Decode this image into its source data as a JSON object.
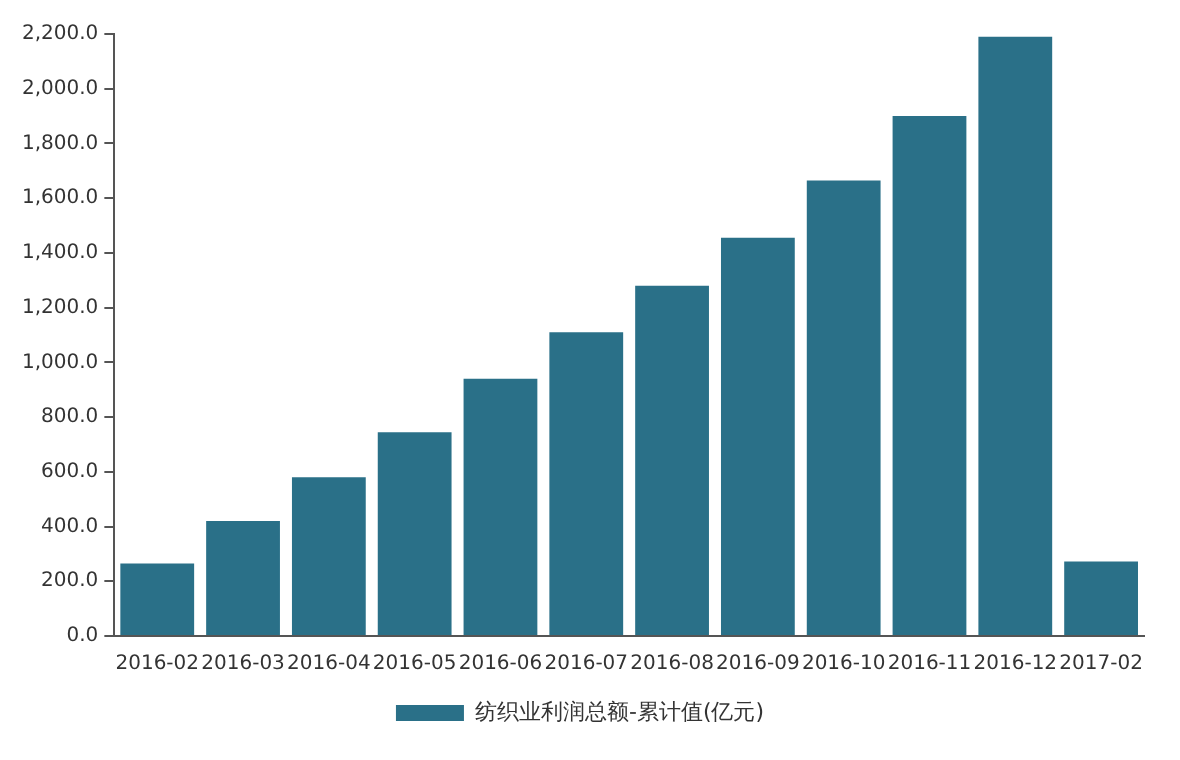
{
  "chart_data": {
    "type": "bar",
    "categories": [
      "2016-02",
      "2016-03",
      "2016-04",
      "2016-05",
      "2016-06",
      "2016-07",
      "2016-08",
      "2016-09",
      "2016-10",
      "2016-11",
      "2016-12",
      "2017-02"
    ],
    "series": [
      {
        "name": "纺织业利润总额-累计值(亿元)",
        "color": "#2a7088",
        "values": [
          265,
          420,
          580,
          745,
          940,
          1110,
          1280,
          1455,
          1665,
          1900,
          2190,
          272
        ]
      }
    ],
    "ylim": [
      0,
      2200
    ],
    "yticks": [
      {
        "value": 0,
        "label": "0.0"
      },
      {
        "value": 200,
        "label": "200.0"
      },
      {
        "value": 400,
        "label": "400.0"
      },
      {
        "value": 600,
        "label": "600.0"
      },
      {
        "value": 800,
        "label": "800.0"
      },
      {
        "value": 1000,
        "label": "1,000.0"
      },
      {
        "value": 1200,
        "label": "1,200.0"
      },
      {
        "value": 1400,
        "label": "1,400.0"
      },
      {
        "value": 1600,
        "label": "1,600.0"
      },
      {
        "value": 1800,
        "label": "1,800.0"
      },
      {
        "value": 2000,
        "label": "2,000.0"
      },
      {
        "value": 2200,
        "label": "2,200.0"
      }
    ],
    "grid": false,
    "legend": "bottom"
  }
}
